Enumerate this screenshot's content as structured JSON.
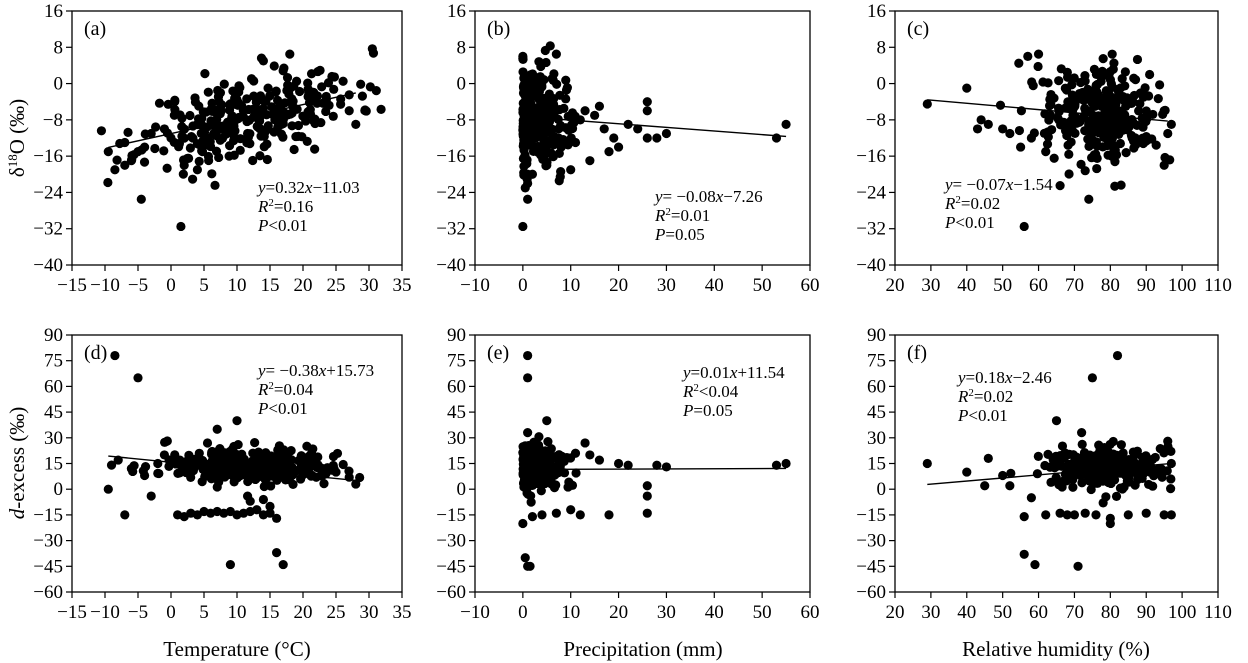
{
  "figure": {
    "xlabels": [
      "Temperature (°C)",
      "Precipitation (mm)",
      "Relative humidity (%)"
    ],
    "ylabels": {
      "top": {
        "delta": "δ",
        "sup": "18",
        "rest": "O (‰)"
      },
      "bottom": {
        "italic": "d",
        "rest": "-excess (‰)"
      }
    }
  },
  "chart_data": [
    {
      "type": "scatter",
      "id": "a",
      "label": "(a)",
      "xlim": [
        -15,
        35
      ],
      "xticks": [
        -15,
        -10,
        -5,
        0,
        5,
        10,
        15,
        20,
        25,
        30,
        35
      ],
      "ylim": [
        -40,
        16
      ],
      "yticks": [
        16,
        8,
        0,
        -8,
        -16,
        -24,
        -32,
        -40
      ],
      "fit": {
        "slope": 0.32,
        "intercept": -11.03,
        "x_range": [
          -9.5,
          28
        ]
      },
      "stats": [
        "y=0.32x−11.03",
        "R²=0.16",
        "P<0.01"
      ],
      "cloud": {
        "n": 300,
        "seed": 11,
        "x_center": 12,
        "x_spread": 8,
        "y_noise": 4.5,
        "model": "fit"
      },
      "points": [
        [
          -9.5,
          -15
        ],
        [
          -8.5,
          -19
        ],
        [
          -7,
          -13
        ],
        [
          -6,
          -17
        ],
        [
          -5,
          -15
        ],
        [
          -4.5,
          -25.5
        ],
        [
          1.5,
          -31.5
        ],
        [
          18,
          6.5
        ],
        [
          14,
          5
        ],
        [
          -3,
          -11
        ],
        [
          -1,
          -10
        ],
        [
          0,
          -12
        ],
        [
          2,
          -18
        ],
        [
          4,
          -19
        ],
        [
          27,
          -2.5
        ],
        [
          27,
          -6
        ],
        [
          28,
          -9
        ],
        [
          -7,
          -18
        ],
        [
          -4,
          -14
        ]
      ]
    },
    {
      "type": "scatter",
      "id": "b",
      "label": "(b)",
      "xlim": [
        -10,
        60
      ],
      "xticks": [
        -10,
        0,
        10,
        20,
        30,
        40,
        50,
        60
      ],
      "ylim": [
        -40,
        16
      ],
      "yticks": [
        16,
        8,
        0,
        -8,
        -16,
        -24,
        -32,
        -40
      ],
      "fit": {
        "slope": -0.08,
        "intercept": -7.26,
        "x_range": [
          0,
          55
        ]
      },
      "stats": [
        "y= −0.08x−7.26",
        "R²=0.01",
        "P=0.05"
      ],
      "cloud": {
        "n": 300,
        "seed": 22,
        "x_center": 2,
        "x_spread": 3.5,
        "y_noise": 5,
        "model": "fit",
        "x_min": 0
      },
      "points": [
        [
          0,
          -31.5
        ],
        [
          1,
          -25.5
        ],
        [
          0.5,
          -23
        ],
        [
          1,
          -22
        ],
        [
          53,
          -12
        ],
        [
          55,
          -9
        ],
        [
          26,
          -4
        ],
        [
          26,
          -6
        ],
        [
          30,
          -11
        ],
        [
          28,
          -12
        ],
        [
          20,
          -14
        ],
        [
          18,
          -15
        ],
        [
          14,
          -17
        ],
        [
          10,
          -19
        ],
        [
          8,
          -14
        ],
        [
          5,
          -18
        ],
        [
          7,
          6.5
        ],
        [
          0,
          5.5
        ],
        [
          0,
          6
        ],
        [
          12,
          -8
        ],
        [
          15,
          -7
        ],
        [
          16,
          -5
        ],
        [
          22,
          -9
        ],
        [
          24,
          -10
        ],
        [
          26,
          -12
        ],
        [
          19,
          -12
        ],
        [
          17,
          -10
        ],
        [
          11,
          -13
        ],
        [
          13,
          -6
        ],
        [
          2,
          -20
        ],
        [
          1,
          -20
        ]
      ]
    },
    {
      "type": "scatter",
      "id": "c",
      "label": "(c)",
      "xlim": [
        20,
        110
      ],
      "xticks": [
        20,
        30,
        40,
        50,
        60,
        70,
        80,
        90,
        100,
        110
      ],
      "ylim": [
        -40,
        16
      ],
      "yticks": [
        16,
        8,
        0,
        -8,
        -16,
        -24,
        -32,
        -40
      ],
      "fit": {
        "slope": -0.07,
        "intercept": -1.54,
        "x_range": [
          29,
          96
        ]
      },
      "stats": [
        "y= −0.07x−1.54",
        "R²=0.02",
        "P<0.01"
      ],
      "cloud": {
        "n": 300,
        "seed": 33,
        "x_center": 78,
        "x_spread": 8,
        "y_noise": 5,
        "model": "fit",
        "x_max": 97
      },
      "points": [
        [
          29,
          -4.5
        ],
        [
          40,
          -1
        ],
        [
          43,
          -10
        ],
        [
          44,
          -8
        ],
        [
          46,
          -9
        ],
        [
          50,
          -10
        ],
        [
          52,
          -11
        ],
        [
          56,
          -31.5
        ],
        [
          66,
          -22.5
        ],
        [
          74,
          -25.5
        ],
        [
          60,
          6.5
        ],
        [
          57,
          6
        ],
        [
          78,
          5.5
        ],
        [
          81,
          4.5
        ],
        [
          95,
          -6
        ],
        [
          96,
          -11
        ],
        [
          95,
          -18
        ],
        [
          97,
          -9
        ],
        [
          55,
          -14
        ],
        [
          58,
          -12
        ],
        [
          62,
          -15
        ]
      ]
    },
    {
      "type": "scatter",
      "id": "d",
      "label": "(d)",
      "xlim": [
        -15,
        35
      ],
      "xticks": [
        -15,
        -10,
        -5,
        0,
        5,
        10,
        15,
        20,
        25,
        30,
        35
      ],
      "ylim": [
        -60,
        90
      ],
      "yticks": [
        90,
        75,
        60,
        45,
        30,
        15,
        0,
        -15,
        -30,
        -45,
        -60
      ],
      "fit": {
        "slope": -0.38,
        "intercept": 15.73,
        "x_range": [
          -9.5,
          28
        ]
      },
      "stats": [
        "y= −0.38x+15.73",
        "R²=0.04",
        "P<0.01"
      ],
      "cloud": {
        "n": 320,
        "seed": 44,
        "x_center": 12,
        "x_spread": 7,
        "y_center": 14,
        "y_noise": 5.5,
        "model": "level"
      },
      "points": [
        [
          -8.5,
          78
        ],
        [
          -5,
          65
        ],
        [
          -9.5,
          0
        ],
        [
          -7,
          -15
        ],
        [
          -3,
          -4
        ],
        [
          -8,
          17
        ],
        [
          -6,
          12
        ],
        [
          -4,
          8
        ],
        [
          -2,
          15
        ],
        [
          -1,
          20
        ],
        [
          1,
          -15
        ],
        [
          2,
          -16
        ],
        [
          3,
          -14
        ],
        [
          4,
          -15
        ],
        [
          5,
          -13
        ],
        [
          6,
          -14
        ],
        [
          7,
          -13
        ],
        [
          8,
          -14
        ],
        [
          9,
          -13
        ],
        [
          10,
          -15
        ],
        [
          11,
          -14
        ],
        [
          12,
          -13
        ],
        [
          13,
          -12
        ],
        [
          14,
          -15
        ],
        [
          15,
          -14
        ],
        [
          16,
          -17
        ],
        [
          9,
          -44
        ],
        [
          16,
          -37
        ],
        [
          17,
          -44
        ],
        [
          10,
          40
        ],
        [
          7,
          35
        ],
        [
          27,
          7
        ],
        [
          28,
          3
        ],
        [
          25,
          10
        ],
        [
          23,
          12
        ],
        [
          15,
          -10
        ],
        [
          14,
          -6
        ],
        [
          12,
          -7
        ]
      ]
    },
    {
      "type": "scatter",
      "id": "e",
      "label": "(e)",
      "xlim": [
        -10,
        60
      ],
      "xticks": [
        -10,
        0,
        10,
        20,
        30,
        40,
        50,
        60
      ],
      "ylim": [
        -60,
        90
      ],
      "yticks": [
        90,
        75,
        60,
        45,
        30,
        15,
        0,
        -15,
        -30,
        -45,
        -60
      ],
      "fit": {
        "slope": 0.01,
        "intercept": 11.54,
        "x_range": [
          0,
          55
        ]
      },
      "stats": [
        "y=0.01x+11.54",
        "R²<0.04",
        "P=0.05"
      ],
      "cloud": {
        "n": 280,
        "seed": 55,
        "x_center": 2.5,
        "x_spread": 3,
        "y_center": 13,
        "y_noise": 6,
        "model": "level",
        "x_min": 0
      },
      "points": [
        [
          1,
          78
        ],
        [
          1,
          65
        ],
        [
          0.5,
          -40
        ],
        [
          1,
          -45
        ],
        [
          1.5,
          -45
        ],
        [
          0,
          -20
        ],
        [
          5,
          40
        ],
        [
          1,
          33
        ],
        [
          26,
          -14
        ],
        [
          26,
          -4
        ],
        [
          26,
          2
        ],
        [
          18,
          -15
        ],
        [
          12,
          -15
        ],
        [
          10,
          -12
        ],
        [
          7,
          -14
        ],
        [
          4,
          -15
        ],
        [
          2,
          -16
        ],
        [
          53,
          14
        ],
        [
          55,
          15
        ],
        [
          30,
          13
        ],
        [
          28,
          14
        ],
        [
          22,
          14
        ],
        [
          20,
          15
        ],
        [
          16,
          17
        ],
        [
          13,
          27
        ],
        [
          14,
          20
        ],
        [
          9,
          18
        ],
        [
          11,
          21
        ]
      ]
    },
    {
      "type": "scatter",
      "id": "f",
      "label": "(f)",
      "xlim": [
        20,
        110
      ],
      "xticks": [
        20,
        30,
        40,
        50,
        60,
        70,
        80,
        90,
        100,
        110
      ],
      "ylim": [
        -60,
        90
      ],
      "yticks": [
        90,
        75,
        60,
        45,
        30,
        15,
        0,
        -15,
        -30,
        -45,
        -60
      ],
      "fit": {
        "slope": 0.18,
        "intercept": -2.46,
        "x_range": [
          29,
          98
        ]
      },
      "stats": [
        "y=0.18x−2.46",
        "R²=0.02",
        "P<0.01"
      ],
      "cloud": {
        "n": 300,
        "seed": 66,
        "x_center": 78,
        "x_spread": 8,
        "y_center": 13,
        "y_noise": 5.5,
        "model": "level",
        "x_max": 97
      },
      "points": [
        [
          82,
          78
        ],
        [
          75,
          65
        ],
        [
          29,
          15
        ],
        [
          40,
          10
        ],
        [
          45,
          2
        ],
        [
          46,
          18
        ],
        [
          50,
          8
        ],
        [
          52,
          2
        ],
        [
          56,
          -16
        ],
        [
          58,
          -5
        ],
        [
          56,
          -38
        ],
        [
          59,
          -44
        ],
        [
          71,
          -45
        ],
        [
          65,
          40
        ],
        [
          72,
          33
        ],
        [
          62,
          -15
        ],
        [
          66,
          -14
        ],
        [
          68,
          -15
        ],
        [
          70,
          -15
        ],
        [
          73,
          -14
        ],
        [
          76,
          -15
        ],
        [
          80,
          -17
        ],
        [
          85,
          -15
        ],
        [
          90,
          -14
        ],
        [
          95,
          -15
        ],
        [
          97,
          -15
        ],
        [
          96,
          28
        ],
        [
          97,
          15
        ],
        [
          80,
          -20
        ],
        [
          78,
          -8
        ]
      ]
    }
  ]
}
